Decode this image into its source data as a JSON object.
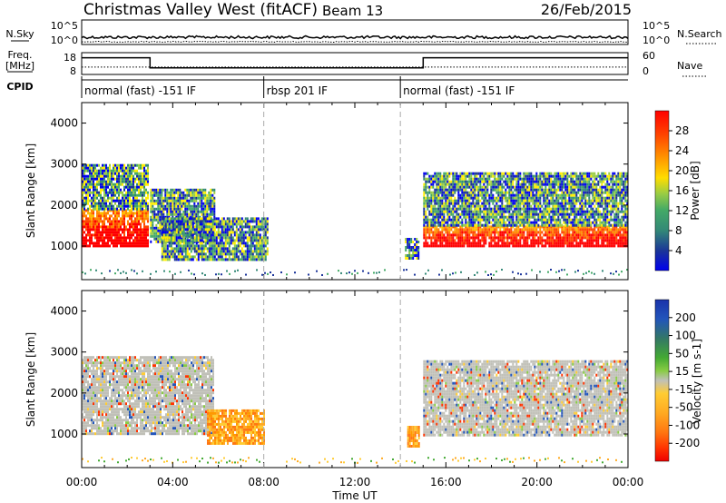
{
  "header": {
    "station": "Christmas Valley West (fitACF)",
    "beam": "Beam 13",
    "date": "26/Feb/2015"
  },
  "top_panel": {
    "left_label": "N.Sky",
    "left_ticks": [
      "10^5",
      "10^0"
    ],
    "right_label": "N.Search",
    "right_ticks": [
      "10^5",
      "10^0"
    ]
  },
  "freq_panel": {
    "left_label_line1": "Freq.",
    "left_label_line2": "[MHz]",
    "left_ticks": [
      "18",
      "8"
    ],
    "right_label": "Nave",
    "right_ticks": [
      "60",
      "0"
    ]
  },
  "cpid_panel": {
    "label": "CPID",
    "segments": [
      {
        "start_hour": 0,
        "text": "normal (fast) -151 IF"
      },
      {
        "start_hour": 8,
        "text": "rbsp 201 IF"
      },
      {
        "start_hour": 14,
        "text": "normal (fast) -151 IF"
      }
    ]
  },
  "x_axis": {
    "label": "Time UT",
    "tick_labels": [
      "00:00",
      "04:00",
      "08:00",
      "12:00",
      "16:00",
      "20:00",
      "00:00"
    ]
  },
  "chart_data": [
    {
      "type": "heatmap",
      "name": "power",
      "ylabel": "Slant Range [km]",
      "xlim": [
        0,
        24
      ],
      "ylim": [
        180,
        4500
      ],
      "yticks": [
        1000,
        2000,
        3000,
        4000
      ],
      "colorbar": {
        "label": "Power [dB]",
        "ticks": [
          "28",
          "24",
          "20",
          "16",
          "12",
          "8",
          "4"
        ],
        "colors": [
          "#ff0000",
          "#ff4400",
          "#ff8800",
          "#ffbb00",
          "#ffee00",
          "#99cc44",
          "#44aa66",
          "#338877",
          "#1a3399",
          "#0000ee"
        ]
      },
      "echo_regions": [
        {
          "t0": 0.0,
          "t1": 2.9,
          "r_lo": 1000,
          "r_hi": 1900,
          "level": "24-32"
        },
        {
          "t0": 0.0,
          "t1": 2.9,
          "r_lo": 1900,
          "r_hi": 3000,
          "level": "8-20"
        },
        {
          "t0": 3.0,
          "t1": 5.8,
          "r_lo": 1100,
          "r_hi": 2400,
          "level": "16-28"
        },
        {
          "t0": 3.5,
          "t1": 8.2,
          "r_lo": 700,
          "r_hi": 1700,
          "level": "4-16"
        },
        {
          "t0": 14.2,
          "t1": 14.8,
          "r_lo": 700,
          "r_hi": 1200,
          "level": "4-12"
        },
        {
          "t0": 15.0,
          "t1": 24.0,
          "r_lo": 1000,
          "r_hi": 1500,
          "level": "24-32"
        },
        {
          "t0": 15.0,
          "t1": 24.0,
          "r_lo": 1500,
          "r_hi": 2800,
          "level": "8-20"
        }
      ]
    },
    {
      "type": "heatmap",
      "name": "velocity",
      "ylabel": "Slant Range [km]",
      "xlim": [
        0,
        24
      ],
      "ylim": [
        180,
        4500
      ],
      "yticks": [
        1000,
        2000,
        3000,
        4000
      ],
      "colorbar": {
        "label": "Velocity [m s-1]",
        "ticks": [
          "200",
          "100",
          "50",
          "15",
          "-15",
          "-50",
          "-100",
          "-200"
        ],
        "colors": [
          "#1a33aa",
          "#2255bb",
          "#337766",
          "#44aa33",
          "#88cc44",
          "#c0c0b8",
          "#ffcc33",
          "#ffaa22",
          "#ff7711",
          "#ff3300",
          "#ee0000"
        ]
      },
      "echo_regions": [
        {
          "t0": 0.0,
          "t1": 5.8,
          "r_lo": 1000,
          "r_hi": 2900,
          "level": "-15 to 15"
        },
        {
          "t0": 5.5,
          "t1": 8.0,
          "r_lo": 800,
          "r_hi": 1600,
          "level": "-50 to -100"
        },
        {
          "t0": 14.3,
          "t1": 14.8,
          "r_lo": 700,
          "r_hi": 1200,
          "level": "-50 to -100"
        },
        {
          "t0": 15.0,
          "t1": 24.0,
          "r_lo": 1000,
          "r_hi": 2800,
          "level": "-15 to 15"
        }
      ]
    }
  ],
  "freq_data": {
    "segments": [
      [
        0,
        3,
        17
      ],
      [
        3,
        15,
        10
      ],
      [
        15,
        24,
        17
      ]
    ]
  },
  "nave_data": {
    "level": 22
  }
}
